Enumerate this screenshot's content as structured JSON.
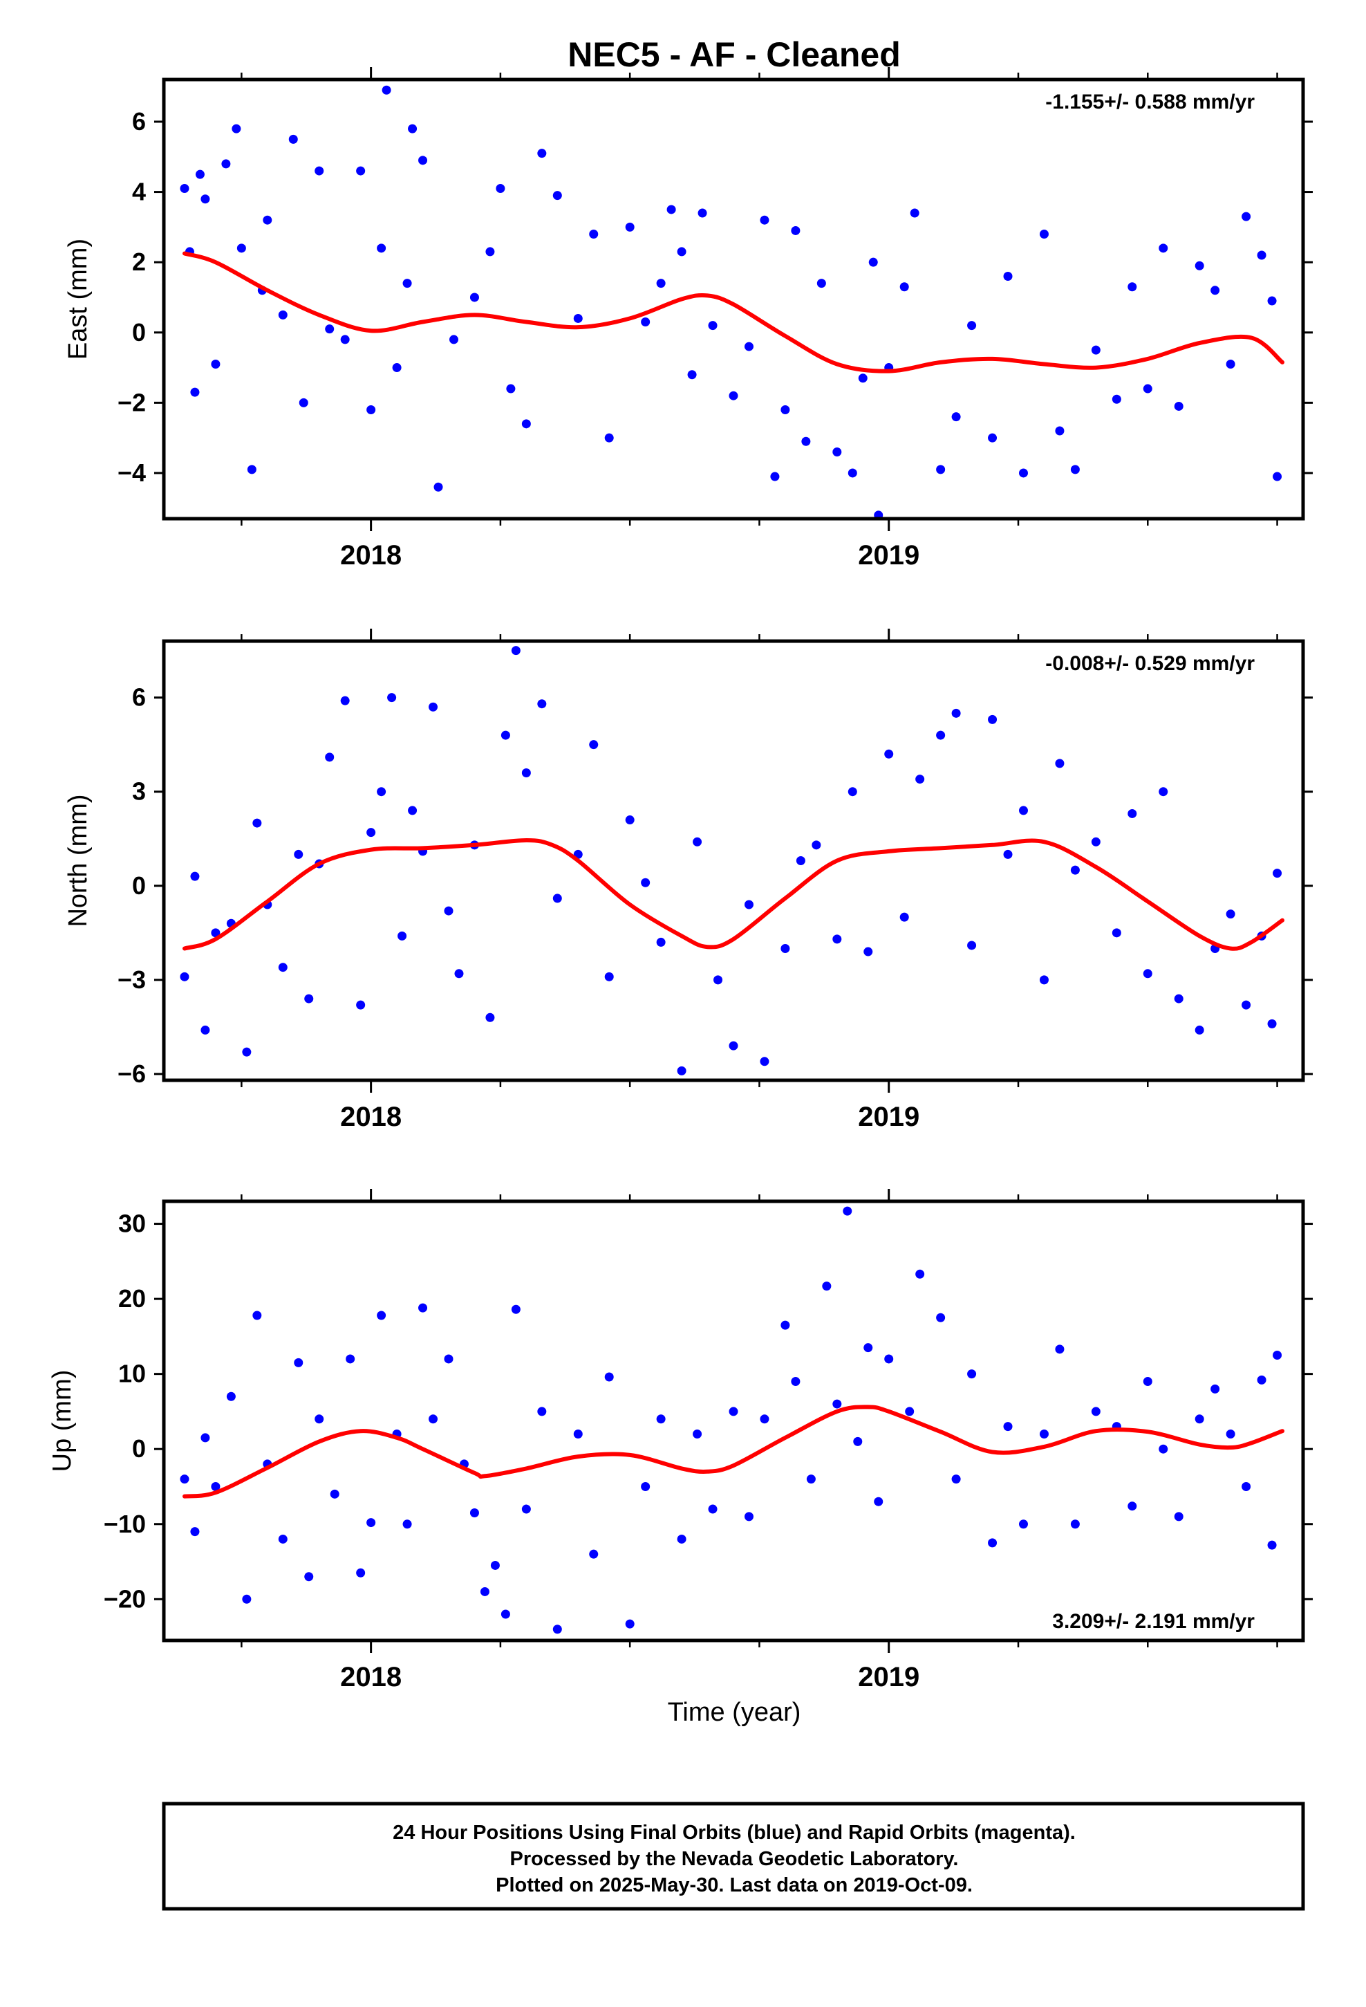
{
  "title": "NEC5  - AF - Cleaned",
  "xlabel": "Time (year)",
  "caption": {
    "line1": "24 Hour Positions Using Final Orbits (blue) and Rapid Orbits (magenta).",
    "line2": "Processed by the Nevada Geodetic Laboratory.",
    "line3": "Plotted on 2025-May-30. Last data on 2019-Oct-09."
  },
  "colors": {
    "final_orbits": "#0000ff",
    "model_fit": "#ff0000",
    "axes": "#000000"
  },
  "chart_data": [
    {
      "type": "scatter",
      "ylabel": "East (mm)",
      "xlim": [
        2017.6,
        2019.8
      ],
      "ylim": [
        -5.3,
        7.2
      ],
      "yticks": [
        -4,
        -2,
        0,
        2,
        4,
        6
      ],
      "xticks_major": [
        2018,
        2019
      ],
      "xtick_labels": [
        "2018",
        "2019"
      ],
      "rate_label": "-1.155+/- 0.588 mm/yr",
      "rate_position": "top-right",
      "model": {
        "name": "fit",
        "x": [
          2017.64,
          2017.7,
          2017.8,
          2017.9,
          2018.0,
          2018.1,
          2018.2,
          2018.3,
          2018.4,
          2018.5,
          2018.6,
          2018.65,
          2018.7,
          2018.8,
          2018.9,
          2019.0,
          2019.1,
          2019.2,
          2019.3,
          2019.4,
          2019.5,
          2019.6,
          2019.7,
          2019.76
        ],
        "y": [
          2.25,
          2.0,
          1.2,
          0.5,
          0.05,
          0.3,
          0.5,
          0.3,
          0.15,
          0.4,
          0.95,
          1.05,
          0.8,
          -0.1,
          -0.9,
          -1.1,
          -0.85,
          -0.75,
          -0.9,
          -1.0,
          -0.75,
          -0.3,
          -0.15,
          -0.85
        ]
      },
      "points": {
        "name": "daily positions",
        "x": [
          2017.64,
          2017.65,
          2017.66,
          2017.67,
          2017.68,
          2017.7,
          2017.72,
          2017.74,
          2017.75,
          2017.77,
          2017.79,
          2017.8,
          2017.83,
          2017.85,
          2017.87,
          2017.9,
          2017.92,
          2017.95,
          2017.98,
          2018.0,
          2018.02,
          2018.03,
          2018.05,
          2018.07,
          2018.08,
          2018.1,
          2018.13,
          2018.16,
          2018.2,
          2018.23,
          2018.25,
          2018.27,
          2018.3,
          2018.33,
          2018.36,
          2018.4,
          2018.43,
          2018.46,
          2018.5,
          2018.53,
          2018.56,
          2018.58,
          2018.6,
          2018.62,
          2018.64,
          2018.66,
          2018.7,
          2018.73,
          2018.76,
          2018.78,
          2018.8,
          2018.82,
          2018.84,
          2018.87,
          2018.9,
          2018.93,
          2018.95,
          2018.97,
          2018.98,
          2019.0,
          2019.03,
          2019.05,
          2019.1,
          2019.13,
          2019.16,
          2019.2,
          2019.23,
          2019.26,
          2019.3,
          2019.33,
          2019.36,
          2019.4,
          2019.44,
          2019.47,
          2019.5,
          2019.53,
          2019.56,
          2019.6,
          2019.63,
          2019.66,
          2019.69,
          2019.72,
          2019.74,
          2019.75
        ],
        "y": [
          4.1,
          2.3,
          -1.7,
          4.5,
          3.8,
          -0.9,
          4.8,
          5.8,
          2.4,
          -3.9,
          1.2,
          3.2,
          0.5,
          5.5,
          -2.0,
          4.6,
          0.1,
          -0.2,
          4.6,
          -2.2,
          2.4,
          6.9,
          -1.0,
          1.4,
          5.8,
          4.9,
          -4.4,
          -0.2,
          1.0,
          2.3,
          4.1,
          -1.6,
          -2.6,
          5.1,
          3.9,
          0.4,
          2.8,
          -3.0,
          3.0,
          0.3,
          1.4,
          3.5,
          2.3,
          -1.2,
          3.4,
          0.2,
          -1.8,
          -0.4,
          3.2,
          -4.1,
          -2.2,
          2.9,
          -3.1,
          1.4,
          -3.4,
          -4.0,
          -1.3,
          2.0,
          -5.2,
          -1.0,
          1.3,
          3.4,
          -3.9,
          -2.4,
          0.2,
          -3.0,
          1.6,
          -4.0,
          2.8,
          -2.8,
          -3.9,
          -0.5,
          -1.9,
          1.3,
          -1.6,
          2.4,
          -2.1,
          1.9,
          1.2,
          -0.9,
          3.3,
          2.2,
          0.9,
          -4.1
        ]
      }
    },
    {
      "type": "scatter",
      "ylabel": "North (mm)",
      "xlim": [
        2017.6,
        2019.8
      ],
      "ylim": [
        -6.2,
        7.8
      ],
      "yticks": [
        -6,
        -3,
        0,
        3,
        6
      ],
      "xticks_major": [
        2018,
        2019
      ],
      "xtick_labels": [
        "2018",
        "2019"
      ],
      "rate_label": "-0.008+/- 0.529 mm/yr",
      "rate_position": "top-right",
      "model": {
        "name": "fit",
        "x": [
          2017.64,
          2017.7,
          2017.8,
          2017.9,
          2018.0,
          2018.1,
          2018.2,
          2018.3,
          2018.35,
          2018.4,
          2018.5,
          2018.6,
          2018.65,
          2018.7,
          2018.8,
          2018.9,
          2019.0,
          2019.1,
          2019.2,
          2019.3,
          2019.4,
          2019.5,
          2019.6,
          2019.66,
          2019.7,
          2019.76
        ],
        "y": [
          -2.0,
          -1.7,
          -0.5,
          0.7,
          1.15,
          1.2,
          1.3,
          1.45,
          1.3,
          0.8,
          -0.6,
          -1.6,
          -1.95,
          -1.7,
          -0.4,
          0.8,
          1.1,
          1.2,
          1.3,
          1.4,
          0.6,
          -0.5,
          -1.6,
          -2.0,
          -1.8,
          -1.1
        ]
      },
      "points": {
        "name": "daily positions",
        "x": [
          2017.64,
          2017.66,
          2017.68,
          2017.7,
          2017.73,
          2017.76,
          2017.78,
          2017.8,
          2017.83,
          2017.86,
          2017.88,
          2017.9,
          2017.92,
          2017.95,
          2017.98,
          2018.0,
          2018.02,
          2018.04,
          2018.06,
          2018.08,
          2018.1,
          2018.12,
          2018.15,
          2018.17,
          2018.2,
          2018.23,
          2018.26,
          2018.28,
          2018.3,
          2018.33,
          2018.36,
          2018.4,
          2018.43,
          2018.46,
          2018.5,
          2018.53,
          2018.56,
          2018.6,
          2018.63,
          2018.67,
          2018.7,
          2018.73,
          2018.76,
          2018.8,
          2018.83,
          2018.86,
          2018.9,
          2018.93,
          2018.96,
          2019.0,
          2019.03,
          2019.06,
          2019.1,
          2019.13,
          2019.16,
          2019.2,
          2019.23,
          2019.26,
          2019.3,
          2019.33,
          2019.36,
          2019.4,
          2019.44,
          2019.47,
          2019.5,
          2019.53,
          2019.56,
          2019.6,
          2019.63,
          2019.66,
          2019.69,
          2019.72,
          2019.74,
          2019.75
        ],
        "y": [
          -2.9,
          0.3,
          -4.6,
          -1.5,
          -1.2,
          -5.3,
          2.0,
          -0.6,
          -2.6,
          1.0,
          -3.6,
          0.7,
          4.1,
          5.9,
          -3.8,
          1.7,
          3.0,
          6.0,
          -1.6,
          2.4,
          1.1,
          5.7,
          -0.8,
          -2.8,
          1.3,
          -4.2,
          4.8,
          7.5,
          3.6,
          5.8,
          -0.4,
          1.0,
          4.5,
          -2.9,
          2.1,
          0.1,
          -1.8,
          -5.9,
          1.4,
          -3.0,
          -5.1,
          -0.6,
          -5.6,
          -2.0,
          0.8,
          1.3,
          -1.7,
          3.0,
          -2.1,
          4.2,
          -1.0,
          3.4,
          4.8,
          5.5,
          -1.9,
          5.3,
          1.0,
          2.4,
          -3.0,
          3.9,
          0.5,
          1.4,
          -1.5,
          2.3,
          -2.8,
          3.0,
          -3.6,
          -4.6,
          -2.0,
          -0.9,
          -3.8,
          -1.6,
          -4.4,
          0.4
        ]
      }
    },
    {
      "type": "scatter",
      "ylabel": "Up (mm)",
      "xlim": [
        2017.6,
        2019.8
      ],
      "ylim": [
        -25.5,
        33
      ],
      "yticks": [
        -20,
        -10,
        0,
        10,
        20,
        30
      ],
      "xticks_major": [
        2018,
        2019
      ],
      "xtick_labels": [
        "2018",
        "2019"
      ],
      "rate_label": "3.209+/- 2.191 mm/yr",
      "rate_position": "bottom-right",
      "model": {
        "name": "fit",
        "x": [
          2017.64,
          2017.7,
          2017.8,
          2017.9,
          2017.98,
          2018.05,
          2018.1,
          2018.2,
          2018.22,
          2018.3,
          2018.4,
          2018.5,
          2018.6,
          2018.65,
          2018.7,
          2018.8,
          2018.9,
          2018.96,
          2019.0,
          2019.1,
          2019.2,
          2019.3,
          2019.4,
          2019.5,
          2019.6,
          2019.66,
          2019.7,
          2019.76
        ],
        "y": [
          -6.3,
          -5.8,
          -2.5,
          1.0,
          2.4,
          1.5,
          0.0,
          -3.2,
          -3.6,
          -2.6,
          -1.0,
          -0.8,
          -2.6,
          -3.0,
          -2.2,
          1.5,
          5.0,
          5.6,
          5.0,
          2.3,
          -0.4,
          0.3,
          2.4,
          2.3,
          0.6,
          0.2,
          0.8,
          2.4
        ]
      },
      "points": {
        "name": "daily positions",
        "x": [
          2017.64,
          2017.66,
          2017.68,
          2017.7,
          2017.73,
          2017.76,
          2017.78,
          2017.8,
          2017.83,
          2017.86,
          2017.88,
          2017.9,
          2017.93,
          2017.96,
          2017.98,
          2018.0,
          2018.02,
          2018.05,
          2018.07,
          2018.1,
          2018.12,
          2018.15,
          2018.18,
          2018.2,
          2018.22,
          2018.24,
          2018.26,
          2018.28,
          2018.3,
          2018.33,
          2018.36,
          2018.4,
          2018.43,
          2018.46,
          2018.5,
          2018.53,
          2018.56,
          2018.6,
          2018.63,
          2018.66,
          2018.7,
          2018.73,
          2018.76,
          2018.8,
          2018.82,
          2018.85,
          2018.88,
          2018.9,
          2018.92,
          2018.94,
          2018.96,
          2018.98,
          2019.0,
          2019.04,
          2019.06,
          2019.1,
          2019.13,
          2019.16,
          2019.2,
          2019.23,
          2019.26,
          2019.3,
          2019.33,
          2019.36,
          2019.4,
          2019.44,
          2019.47,
          2019.5,
          2019.53,
          2019.56,
          2019.6,
          2019.63,
          2019.66,
          2019.69,
          2019.72,
          2019.74,
          2019.75
        ],
        "y": [
          -4.0,
          -11.0,
          1.5,
          -5.0,
          7.0,
          -20.0,
          17.8,
          -2.0,
          -12.0,
          11.5,
          -17.0,
          4.0,
          -6.0,
          12.0,
          -16.5,
          -9.8,
          17.8,
          2.0,
          -10.0,
          18.8,
          4.0,
          12.0,
          -2.0,
          -8.5,
          -19.0,
          -15.5,
          -22.0,
          18.6,
          -8.0,
          5.0,
          -24.0,
          2.0,
          -14.0,
          9.6,
          -23.3,
          -5.0,
          4.0,
          -12.0,
          2.0,
          -8.0,
          5.0,
          -9.0,
          4.0,
          16.5,
          9.0,
          -4.0,
          21.7,
          6.0,
          31.7,
          1.0,
          13.5,
          -7.0,
          12.0,
          5.0,
          23.3,
          17.5,
          -4.0,
          10.0,
          -12.5,
          3.0,
          -10.0,
          2.0,
          13.3,
          -10.0,
          5.0,
          3.0,
          -7.6,
          9.0,
          0.0,
          -9.0,
          4.0,
          8.0,
          2.0,
          -5.0,
          9.2,
          -12.8,
          12.5
        ]
      }
    }
  ]
}
